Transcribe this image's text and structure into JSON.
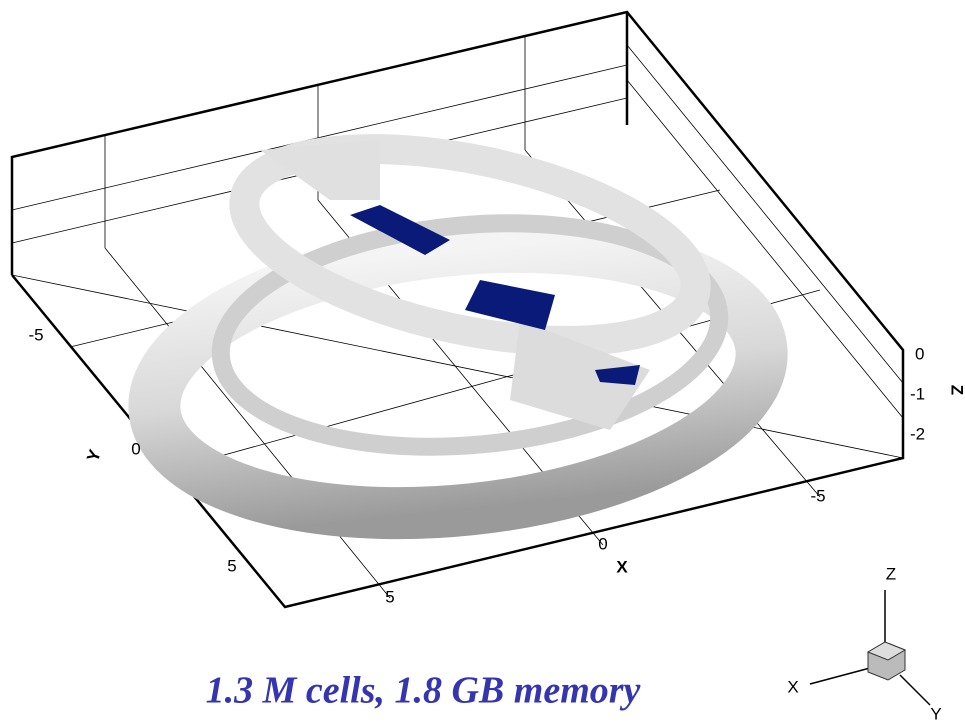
{
  "plot": {
    "axes": {
      "x": {
        "label": "X",
        "ticks": [
          5,
          0,
          -5
        ]
      },
      "y": {
        "label": "Y",
        "ticks": [
          -5,
          0,
          5
        ]
      },
      "z": {
        "label": "Z",
        "ticks": [
          0,
          -1,
          -2
        ]
      }
    },
    "caption": "1.3 M cells, 1.8 GB memory",
    "orientation_axes": {
      "x": "X",
      "y": "Y",
      "z": "Z"
    }
  }
}
